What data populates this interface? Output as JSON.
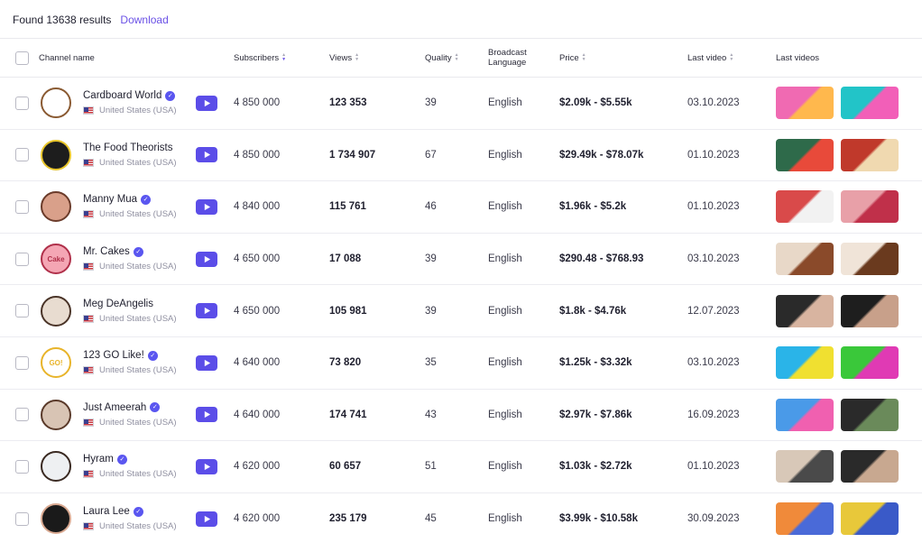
{
  "summary": {
    "found_text": "Found 13638 results",
    "download_label": "Download"
  },
  "columns": {
    "channel": "Channel name",
    "subscribers": "Subscribers",
    "views": "Views",
    "quality": "Quality",
    "language_line1": "Broadcast",
    "language_line2": "Language",
    "price": "Price",
    "last_video": "Last video",
    "last_videos": "Last videos"
  },
  "rows": [
    {
      "name": "Cardboard World",
      "verified": true,
      "country": "United States (USA)",
      "subscribers": "4 850 000",
      "views": "123 353",
      "quality": "39",
      "language": "English",
      "price": "$2.09k - $5.55k",
      "last_video": "03.10.2023",
      "avatar_bg": "#ffffff",
      "avatar_fg": "#8a5a32",
      "avatar_text": "",
      "thumb1": [
        "#f06ab2",
        "#ffb84d"
      ],
      "thumb2": [
        "#22c4c8",
        "#f25fb8"
      ]
    },
    {
      "name": "The Food Theorists",
      "verified": false,
      "country": "United States (USA)",
      "subscribers": "4 850 000",
      "views": "1 734 907",
      "quality": "67",
      "language": "English",
      "price": "$29.49k - $78.07k",
      "last_video": "01.10.2023",
      "avatar_bg": "#1d1d1d",
      "avatar_fg": "#e8c52a",
      "avatar_text": "",
      "thumb1": [
        "#2e6a4a",
        "#e84a3a"
      ],
      "thumb2": [
        "#c0392b",
        "#f0d9b0"
      ]
    },
    {
      "name": "Manny Mua",
      "verified": true,
      "country": "United States (USA)",
      "subscribers": "4 840 000",
      "views": "115 761",
      "quality": "46",
      "language": "English",
      "price": "$1.96k - $5.2k",
      "last_video": "01.10.2023",
      "avatar_bg": "#d9a08a",
      "avatar_fg": "#6b3b2a",
      "avatar_text": "",
      "thumb1": [
        "#d94a4a",
        "#f2f2f2"
      ],
      "thumb2": [
        "#e8a0a8",
        "#c0304a"
      ]
    },
    {
      "name": "Mr. Cakes",
      "verified": true,
      "country": "United States (USA)",
      "subscribers": "4 650 000",
      "views": "17 088",
      "quality": "39",
      "language": "English",
      "price": "$290.48 - $768.93",
      "last_video": "03.10.2023",
      "avatar_bg": "#f4a6b4",
      "avatar_fg": "#b0304a",
      "avatar_text": "Cake",
      "thumb1": [
        "#e8d8c8",
        "#8a4a2a"
      ],
      "thumb2": [
        "#f0e4d8",
        "#6a3a1e"
      ]
    },
    {
      "name": "Meg DeAngelis",
      "verified": false,
      "country": "United States (USA)",
      "subscribers": "4 650 000",
      "views": "105 981",
      "quality": "39",
      "language": "English",
      "price": "$1.8k - $4.76k",
      "last_video": "12.07.2023",
      "avatar_bg": "#e8dcd0",
      "avatar_fg": "#4a3428",
      "avatar_text": "",
      "thumb1": [
        "#2a2a2a",
        "#d8b4a0"
      ],
      "thumb2": [
        "#1e1e1e",
        "#c8a08a"
      ]
    },
    {
      "name": "123 GO Like!",
      "verified": true,
      "country": "United States (USA)",
      "subscribers": "4 640 000",
      "views": "73 820",
      "quality": "35",
      "language": "English",
      "price": "$1.25k - $3.32k",
      "last_video": "03.10.2023",
      "avatar_bg": "#ffffff",
      "avatar_fg": "#e8b42a",
      "avatar_text": "GO!",
      "thumb1": [
        "#2ab4e8",
        "#f0e030"
      ],
      "thumb2": [
        "#3ac83a",
        "#e03ab4"
      ]
    },
    {
      "name": "Just Ameerah",
      "verified": true,
      "country": "United States (USA)",
      "subscribers": "4 640 000",
      "views": "174 741",
      "quality": "43",
      "language": "English",
      "price": "$2.97k - $7.86k",
      "last_video": "16.09.2023",
      "avatar_bg": "#d8c4b4",
      "avatar_fg": "#5a3a2a",
      "avatar_text": "",
      "thumb1": [
        "#4a9ae8",
        "#f060b0"
      ],
      "thumb2": [
        "#2a2a2a",
        "#6a8a5a"
      ]
    },
    {
      "name": "Hyram",
      "verified": true,
      "country": "United States (USA)",
      "subscribers": "4 620 000",
      "views": "60 657",
      "quality": "51",
      "language": "English",
      "price": "$1.03k - $2.72k",
      "last_video": "01.10.2023",
      "avatar_bg": "#eef0f2",
      "avatar_fg": "#3a2a22",
      "avatar_text": "",
      "thumb1": [
        "#d8c8b8",
        "#4a4a4a"
      ],
      "thumb2": [
        "#2a2a2a",
        "#c8a890"
      ]
    },
    {
      "name": "Laura Lee",
      "verified": true,
      "country": "United States (USA)",
      "subscribers": "4 620 000",
      "views": "235 179",
      "quality": "45",
      "language": "English",
      "price": "$3.99k - $10.58k",
      "last_video": "30.09.2023",
      "avatar_bg": "#1a1a1a",
      "avatar_fg": "#d8a890",
      "avatar_text": "",
      "thumb1": [
        "#f08a3a",
        "#4a6ad8"
      ],
      "thumb2": [
        "#e8c83a",
        "#3a5ac8"
      ]
    }
  ]
}
